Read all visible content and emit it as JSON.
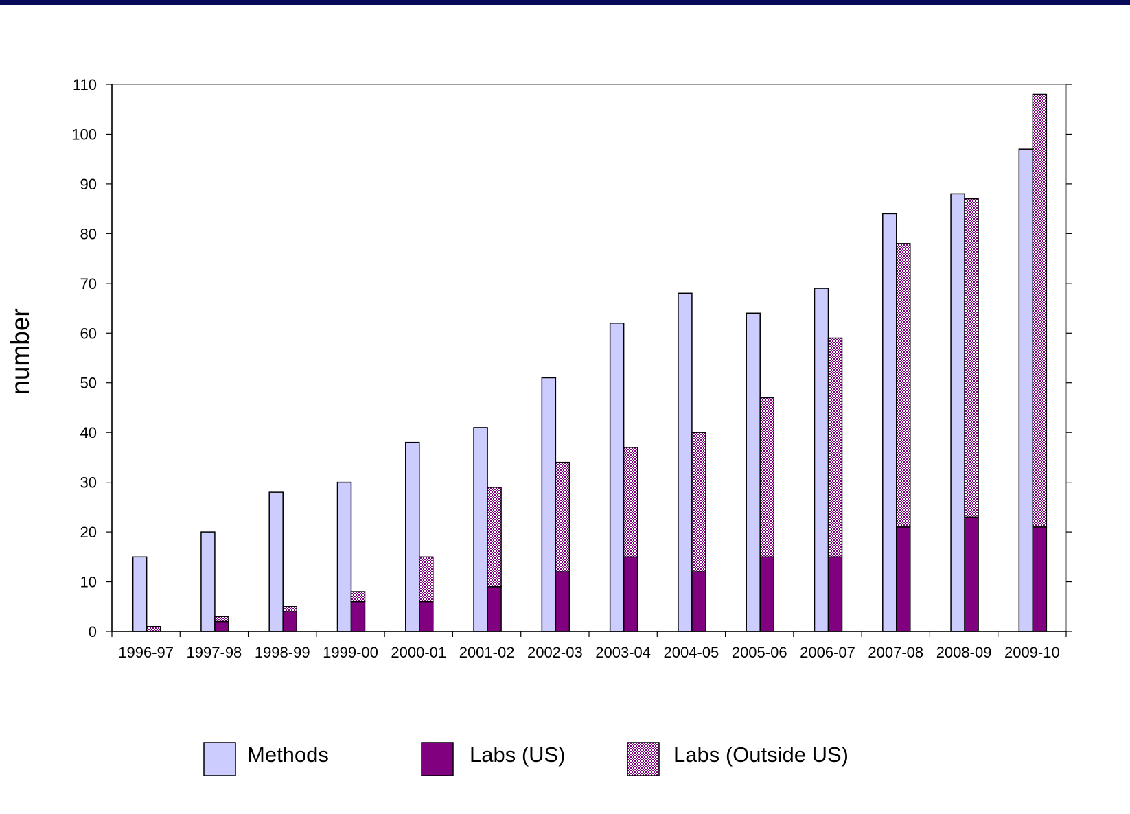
{
  "colors": {
    "top_band": "#0a0a5a",
    "methods": "#ccccff",
    "labs_us": "#800080",
    "labs_outside_pattern_fg": "#800080",
    "labs_outside_pattern_bg": "#ffffff"
  },
  "chart_data": {
    "type": "bar",
    "title": "",
    "xlabel": "",
    "ylabel": "number",
    "ylim": [
      0,
      110
    ],
    "yticks": [
      0,
      10,
      20,
      30,
      40,
      50,
      60,
      70,
      80,
      90,
      100,
      110
    ],
    "categories": [
      "1996-97",
      "1997-98",
      "1998-99",
      "1999-00",
      "2000-01",
      "2001-02",
      "2002-03",
      "2003-04",
      "2004-05",
      "2005-06",
      "2006-07",
      "2007-08",
      "2008-09",
      "2009-10"
    ],
    "series": [
      {
        "name": "Methods",
        "stack": "methods",
        "values": [
          15,
          20,
          28,
          30,
          38,
          41,
          51,
          62,
          68,
          64,
          69,
          84,
          88,
          97
        ]
      },
      {
        "name": "Labs (US)",
        "stack": "labs",
        "values": [
          0,
          2,
          4,
          6,
          6,
          9,
          12,
          15,
          12,
          15,
          15,
          21,
          23,
          21
        ]
      },
      {
        "name": "Labs (Outside US)",
        "stack": "labs",
        "values": [
          1,
          1,
          1,
          2,
          9,
          20,
          22,
          22,
          28,
          32,
          44,
          57,
          64,
          87
        ]
      }
    ],
    "legend_position": "bottom",
    "grid": false
  }
}
